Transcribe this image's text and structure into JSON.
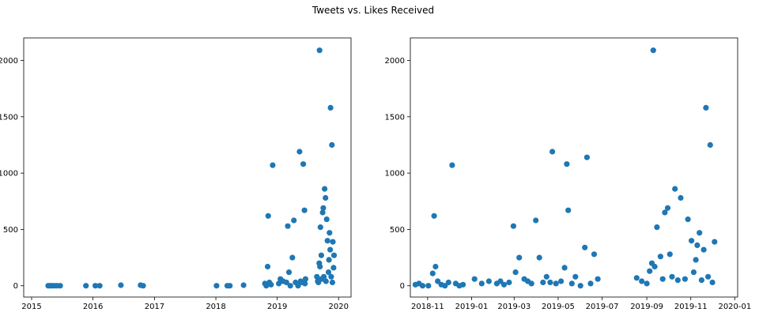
{
  "figure_title": "Tweets vs. Likes Received",
  "point_color": "#1f77b4",
  "chart_data": [
    {
      "type": "scatter",
      "title": "",
      "xlabel": "",
      "ylabel": "",
      "x_scale": "date",
      "xlim": [
        "2014-11-15",
        "2020-03-15"
      ],
      "ylim": [
        -100,
        2200
      ],
      "xticks": [
        {
          "value": "2015-01-01",
          "label": "2015"
        },
        {
          "value": "2016-01-01",
          "label": "2016"
        },
        {
          "value": "2017-01-01",
          "label": "2017"
        },
        {
          "value": "2018-01-01",
          "label": "2018"
        },
        {
          "value": "2019-01-01",
          "label": "2019"
        },
        {
          "value": "2020-01-01",
          "label": "2020"
        }
      ],
      "yticks": [
        0,
        500,
        1000,
        1500,
        2000
      ],
      "grid": false,
      "series": [
        {
          "x": [
            "2015-04-10",
            "2015-04-20",
            "2015-05-01",
            "2015-05-15",
            "2015-06-01",
            "2015-06-20",
            "2015-11-20",
            "2016-01-15",
            "2016-02-10",
            "2016-06-15",
            "2016-10-10",
            "2016-10-25",
            "2018-01-05",
            "2018-03-10",
            "2018-03-25",
            "2018-06-15",
            "2018-10-20",
            "2018-10-28",
            "2018-11-05",
            "2018-11-08",
            "2018-11-15",
            "2018-11-25",
            "2018-12-05",
            "2019-01-10",
            "2019-01-20",
            "2019-02-05",
            "2019-02-25",
            "2019-03-05",
            "2019-03-12",
            "2019-03-20",
            "2019-04-01",
            "2019-04-10",
            "2019-04-20",
            "2019-05-05",
            "2019-05-14",
            "2019-05-20",
            "2019-05-28",
            "2019-06-05",
            "2019-06-12",
            "2019-06-15",
            "2019-06-18",
            "2019-08-25",
            "2019-08-30",
            "2019-09-03",
            "2019-09-08",
            "2019-09-10",
            "2019-09-12",
            "2019-09-15",
            "2019-09-20",
            "2019-09-22",
            "2019-09-28",
            "2019-10-02",
            "2019-10-05",
            "2019-10-10",
            "2019-10-15",
            "2019-10-18",
            "2019-10-22",
            "2019-10-27",
            "2019-11-02",
            "2019-11-05",
            "2019-11-08",
            "2019-11-12",
            "2019-11-14",
            "2019-11-18",
            "2019-11-22",
            "2019-11-25",
            "2019-11-28",
            "2019-12-02",
            "2019-12-05"
          ],
          "y": [
            0,
            0,
            0,
            0,
            0,
            0,
            0,
            0,
            0,
            5,
            5,
            0,
            0,
            0,
            0,
            5,
            20,
            0,
            170,
            620,
            30,
            10,
            1070,
            20,
            60,
            40,
            30,
            530,
            120,
            0,
            250,
            580,
            30,
            0,
            1190,
            40,
            30,
            1080,
            670,
            20,
            60,
            80,
            40,
            30,
            200,
            2090,
            170,
            520,
            270,
            60,
            650,
            690,
            80,
            860,
            780,
            40,
            590,
            400,
            120,
            230,
            470,
            320,
            1580,
            80,
            1250,
            30,
            390,
            160,
            270
          ]
        }
      ]
    },
    {
      "type": "scatter",
      "title": "",
      "xlabel": "",
      "ylabel": "",
      "x_scale": "date",
      "xlim": [
        "2018-10-08",
        "2020-01-05"
      ],
      "ylim": [
        -100,
        2200
      ],
      "xticks": [
        {
          "value": "2018-11-01",
          "label": "2018-11"
        },
        {
          "value": "2019-01-01",
          "label": "2019-01"
        },
        {
          "value": "2019-03-01",
          "label": "2019-03"
        },
        {
          "value": "2019-05-01",
          "label": "2019-05"
        },
        {
          "value": "2019-07-01",
          "label": "2019-07"
        },
        {
          "value": "2019-09-01",
          "label": "2019-09"
        },
        {
          "value": "2019-11-01",
          "label": "2019-11"
        },
        {
          "value": "2020-01-01",
          "label": "2020-01"
        }
      ],
      "yticks": [
        0,
        500,
        1000,
        1500,
        2000
      ],
      "grid": false,
      "series": [
        {
          "x": [
            "2018-10-15",
            "2018-10-20",
            "2018-10-25",
            "2018-11-02",
            "2018-11-08",
            "2018-11-10",
            "2018-11-12",
            "2018-11-15",
            "2018-11-20",
            "2018-11-25",
            "2018-11-30",
            "2018-12-05",
            "2018-12-10",
            "2018-12-15",
            "2018-12-20",
            "2019-01-05",
            "2019-01-15",
            "2019-01-25",
            "2019-02-05",
            "2019-02-10",
            "2019-02-15",
            "2019-02-22",
            "2019-02-28",
            "2019-03-03",
            "2019-03-08",
            "2019-03-15",
            "2019-03-20",
            "2019-03-25",
            "2019-03-31",
            "2019-04-05",
            "2019-04-10",
            "2019-04-15",
            "2019-04-20",
            "2019-04-23",
            "2019-04-28",
            "2019-05-05",
            "2019-05-10",
            "2019-05-13",
            "2019-05-15",
            "2019-05-20",
            "2019-05-25",
            "2019-06-01",
            "2019-06-07",
            "2019-06-10",
            "2019-06-15",
            "2019-06-20",
            "2019-06-25",
            "2019-08-18",
            "2019-08-25",
            "2019-09-01",
            "2019-09-05",
            "2019-09-08",
            "2019-09-10",
            "2019-09-12",
            "2019-09-15",
            "2019-09-20",
            "2019-09-23",
            "2019-09-26",
            "2019-09-30",
            "2019-10-03",
            "2019-10-06",
            "2019-10-10",
            "2019-10-14",
            "2019-10-18",
            "2019-10-24",
            "2019-10-28",
            "2019-11-02",
            "2019-11-05",
            "2019-11-08",
            "2019-11-10",
            "2019-11-13",
            "2019-11-16",
            "2019-11-19",
            "2019-11-22",
            "2019-11-25",
            "2019-11-28",
            "2019-12-01",
            "2019-12-04"
          ],
          "y": [
            10,
            20,
            0,
            0,
            110,
            620,
            170,
            40,
            10,
            0,
            30,
            1070,
            20,
            0,
            10,
            60,
            20,
            40,
            20,
            40,
            10,
            30,
            530,
            120,
            250,
            60,
            40,
            20,
            580,
            250,
            30,
            80,
            30,
            1190,
            20,
            40,
            160,
            1080,
            670,
            20,
            80,
            0,
            340,
            1140,
            20,
            280,
            60,
            70,
            40,
            20,
            130,
            200,
            2090,
            170,
            520,
            260,
            60,
            650,
            690,
            280,
            80,
            860,
            50,
            780,
            60,
            590,
            400,
            120,
            230,
            360,
            470,
            50,
            320,
            1580,
            80,
            1250,
            30,
            390
          ]
        }
      ]
    }
  ]
}
